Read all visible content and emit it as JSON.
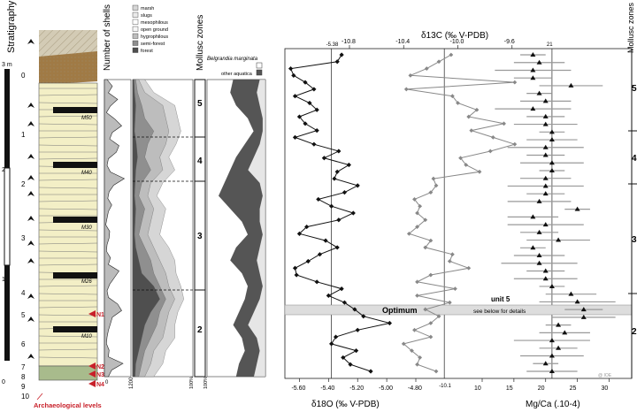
{
  "stratigraphy": {
    "title": "Stratigraphy",
    "scale_unit": "3 m",
    "scale_ticks": [
      "3 m",
      "2",
      "1",
      "0"
    ],
    "layer_numbers": [
      "0",
      "1",
      "2",
      "3",
      "4",
      "5",
      "6",
      "7",
      "8",
      "9",
      "10"
    ],
    "markers": [
      "M50",
      "M40",
      "M30",
      "M26",
      "M10"
    ],
    "archaeo_levels": [
      "N1",
      "N2",
      "N3",
      "N4"
    ],
    "archaeo_title": "Archaeological levels",
    "colors": {
      "archaeo": "#c8202a",
      "sand": "#f3efc6",
      "clay": "#a07a45",
      "base": "#a8bb8c"
    }
  },
  "shells": {
    "title": "Number of shells",
    "x_max": "1200"
  },
  "legend": {
    "items": [
      "marsh",
      "slugs",
      "mesophilous",
      "open ground",
      "hygrophilous",
      "semi-forest",
      "forest"
    ],
    "colors": [
      "#d6d6d6",
      "#eaeaea",
      "#ffffff",
      "#f6f6f6",
      "#bdbdbd",
      "#8f8f8f",
      "#4f4f4f"
    ]
  },
  "mollusc": {
    "title": "Mollusc zones",
    "zones": [
      "5",
      "4",
      "3",
      "2"
    ],
    "pct_label": "100%",
    "belgrandia_title": "Belgrandia marginata",
    "other_aquatica": "other aquatica"
  },
  "chart_data": [
    {
      "type": "line",
      "title": "",
      "xlabel": "δ18O (‰ V-PDB)",
      "xlim": [
        -5.7,
        -4.8
      ],
      "xticks": [
        "-5.60",
        "-5.40",
        "-5.20",
        "-5.00",
        "-4.80"
      ],
      "reference_line": {
        "value": -5.38,
        "label": "-5.38"
      },
      "series": [
        {
          "x": [
            -5.31,
            -5.34,
            -5.66,
            -5.64,
            -5.56,
            -5.5,
            -5.63,
            -5.53,
            -5.48,
            -5.6,
            -5.56,
            -5.48,
            -5.63,
            -5.5,
            -5.33,
            -5.43,
            -5.26,
            -5.34,
            -5.36,
            -5.2,
            -5.29,
            -5.47,
            -5.38,
            -5.23,
            -5.33,
            -5.55,
            -5.6,
            -5.42,
            -5.34,
            -5.46,
            -5.54,
            -5.63,
            -5.62,
            -5.48,
            -5.31,
            -5.4,
            -5.29,
            -5.22,
            -5.16,
            -4.98,
            -5.2,
            -5.35,
            -5.38,
            -5.21,
            -5.3,
            -5.25,
            -5.11
          ]
        }
      ]
    },
    {
      "type": "line",
      "title": "",
      "xlabel": "δ13C (‰ V-PDB)",
      "xlim": [
        -10.8,
        -9.2
      ],
      "xticks": [
        "-10.8",
        "-10.4",
        "-10.0",
        "-9.6"
      ],
      "reference_line": {
        "value": -10.1,
        "label": "-10.1"
      },
      "series": [
        {
          "x": [
            -10.05,
            -10.14,
            -10.23,
            -10.35,
            -9.58,
            -10.38,
            -10.04,
            -10.0,
            -9.86,
            -9.92,
            -9.66,
            -9.9,
            -9.74,
            -9.58,
            -9.76,
            -9.98,
            -9.94,
            -9.84,
            -10.18,
            -10.16,
            -10.2,
            -10.32,
            -10.28,
            -10.3,
            -10.24,
            -10.3,
            -10.36,
            -10.2,
            -10.24,
            -10.04,
            -10.06,
            -9.92,
            -10.2,
            -10.3,
            -10.02,
            -10.3,
            -10.06,
            -10.24,
            -10.14,
            -10.2,
            -10.32,
            -10.2,
            -10.4,
            -10.34,
            -10.28,
            -10.3,
            -10.16
          ]
        }
      ]
    },
    {
      "type": "scatter",
      "title": "",
      "xlabel": "Mg/Ca (.10-4)",
      "xlim": [
        10,
        33
      ],
      "xticks": [
        "10",
        "15",
        "20",
        "25",
        "30"
      ],
      "reference_line": {
        "value": 21,
        "label": "21"
      },
      "series": [
        {
          "x": [
            18,
            19,
            18,
            18,
            24,
            19,
            20,
            18,
            20,
            20,
            21,
            21,
            20,
            20,
            21,
            21,
            20,
            20,
            20,
            19,
            25,
            18,
            20,
            19,
            22,
            18,
            19,
            19,
            20,
            20,
            21,
            24,
            25,
            26,
            26,
            22,
            23,
            21,
            22,
            21,
            20,
            21
          ]
        }
      ]
    }
  ],
  "zones_right": {
    "title": "Mollusc zones",
    "labels": [
      "5",
      "4",
      "3",
      "2"
    ]
  },
  "annotations": {
    "optimum": "Optimum",
    "unit": "unit 5",
    "details": "see below for details",
    "watermark": "@ IOE"
  }
}
